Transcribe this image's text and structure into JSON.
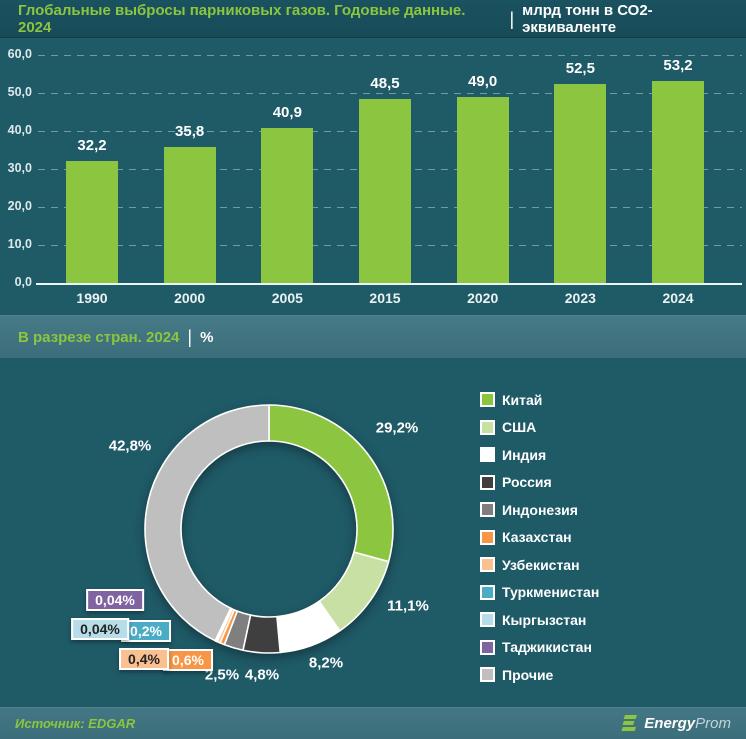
{
  "header": {
    "title": "Глобальные выбросы парниковых газов. Годовые данные. 2024",
    "separator": "|",
    "unit": "млрд тонн в СО2-эквиваленте"
  },
  "section_countries": {
    "title": "В разрезе стран. 2024",
    "separator": "|",
    "unit": "%"
  },
  "footer": {
    "source": "Источник: EDGAR",
    "logo_bold": "Energy",
    "logo_light": "Prom"
  },
  "colors": {
    "background": "#1F5A67",
    "header_bg": "#184C59",
    "band_bg": "#3E717E",
    "accent_green": "#8CC641",
    "text_white": "#FFFFFF",
    "gridline": "rgba(214,234,238,0.45)"
  },
  "chart_data": [
    {
      "type": "bar",
      "title": "Глобальные выбросы парниковых газов. Годовые данные. 2024",
      "unit": "млрд тонн в СО2-эквиваленте",
      "categories": [
        "1990",
        "2000",
        "2005",
        "2015",
        "2020",
        "2023",
        "2024"
      ],
      "values": [
        32.2,
        35.8,
        40.9,
        48.5,
        49.0,
        52.5,
        53.2
      ],
      "value_labels": [
        "32,2",
        "35,8",
        "40,9",
        "48,5",
        "49,0",
        "52,5",
        "53,2"
      ],
      "bar_color": "#8CC641",
      "ylim": [
        0,
        60
      ],
      "yticks": [
        0,
        10,
        20,
        30,
        40,
        50,
        60
      ],
      "ytick_labels": [
        "0,0",
        "10,0",
        "20,0",
        "30,0",
        "40,0",
        "50,0",
        "60,0"
      ],
      "grid": "horizontal-dashed",
      "legend_position": "none"
    },
    {
      "type": "pie",
      "subtype": "donut",
      "title": "В разрезе стран. 2024, %",
      "start_angle_deg": 0,
      "direction": "clockwise",
      "legend_position": "right",
      "slices": [
        {
          "name": "Китай",
          "value": 29.2,
          "label": "29,2%",
          "color": "#8CC641",
          "label_style": "plain"
        },
        {
          "name": "США",
          "value": 11.1,
          "label": "11,1%",
          "color": "#C9E0A5",
          "label_style": "plain"
        },
        {
          "name": "Индия",
          "value": 8.2,
          "label": "8,2%",
          "color": "#FFFFFF",
          "label_style": "plain"
        },
        {
          "name": "Россия",
          "value": 4.8,
          "label": "4,8%",
          "color": "#3F3F3F",
          "label_style": "plain"
        },
        {
          "name": "Индонезия",
          "value": 2.5,
          "label": "2,5%",
          "color": "#7F7F7F",
          "label_style": "plain"
        },
        {
          "name": "Казахстан",
          "value": 0.6,
          "label": "0,6%",
          "color": "#F79646",
          "label_style": "box",
          "box_text_color": "#FFFFFF"
        },
        {
          "name": "Узбекистан",
          "value": 0.4,
          "label": "0,4%",
          "color": "#FAC090",
          "label_style": "box",
          "box_text_color": "#222222"
        },
        {
          "name": "Туркменистан",
          "value": 0.2,
          "label": "0,2%",
          "color": "#4BACC6",
          "label_style": "box",
          "box_text_color": "#FFFFFF"
        },
        {
          "name": "Кыргызстан",
          "value": 0.04,
          "label": "0,04%",
          "color": "#B7DEE8",
          "label_style": "box",
          "box_text_color": "#222222"
        },
        {
          "name": "Таджикистан",
          "value": 0.04,
          "label": "0,04%",
          "color": "#8064A2",
          "label_style": "box",
          "box_text_color": "#FFFFFF"
        },
        {
          "name": "Прочие",
          "value": 42.8,
          "label": "42,8%",
          "color": "#BFBFBF",
          "label_style": "plain"
        }
      ]
    }
  ]
}
